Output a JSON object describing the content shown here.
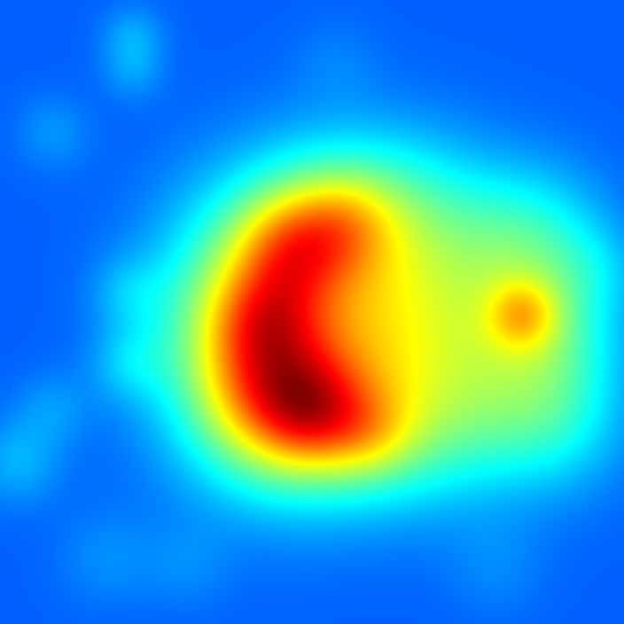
{
  "image": {
    "kind": "heatmap",
    "colormap": "jet",
    "colormap_stops": [
      "#00007f",
      "#0000ff",
      "#0080ff",
      "#00ffff",
      "#00ff00",
      "#ffff00",
      "#ff8000",
      "#ff0000"
    ],
    "background_color": "#0010f0",
    "hot_color": "#ff1a00",
    "text": []
  }
}
